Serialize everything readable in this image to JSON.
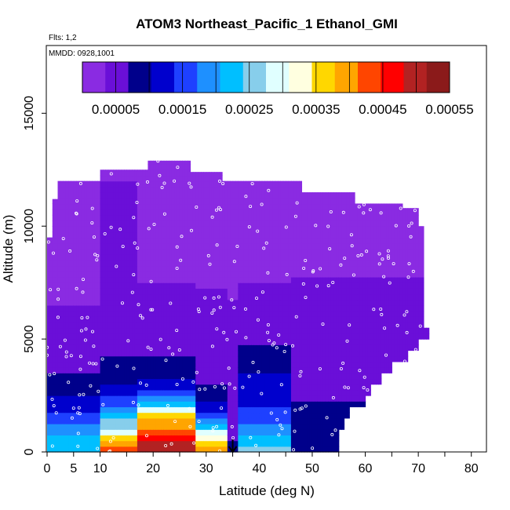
{
  "chart_data": {
    "type": "heatmap",
    "title": "ATOM3 Northeast_Pacific_1 Ethanol_GMI",
    "subtitle_flights": "Flts: 1,2",
    "subtitle_dates": "MMDD: 0928,1001",
    "xlabel": "Latitude (deg N)",
    "ylabel": "Altitude (m)",
    "xlim": [
      0,
      83
    ],
    "ylim": [
      0,
      18000
    ],
    "x_ticks": [
      0,
      5,
      10,
      20,
      30,
      40,
      50,
      60,
      70,
      80
    ],
    "x_ticks_unlabeled": [
      15,
      25,
      35,
      45,
      55,
      65,
      75
    ],
    "y_ticks": [
      0,
      5000,
      10000,
      15000
    ],
    "colorbar": {
      "min": 0.0,
      "max": 0.00055,
      "tick_values": [
        5e-05,
        0.00015,
        0.00025,
        0.00035,
        0.00045,
        0.00055
      ],
      "tick_labels": [
        "0.00005",
        "0.00015",
        "0.00025",
        "0.00035",
        "0.00045",
        "0.00055"
      ],
      "separators": [
        5e-05,
        0.0001,
        0.00015,
        0.0002,
        0.00025,
        0.0003,
        0.00035,
        0.0004,
        0.00045,
        0.0005
      ],
      "colors": [
        "#8a2be2",
        "#6a0fd8",
        "#00008b",
        "#0000cd",
        "#1e40ff",
        "#1e90ff",
        "#00bfff",
        "#87ceeb",
        "#e0ffff",
        "#ffffe0",
        "#ffd700",
        "#ffa500",
        "#ff4500",
        "#ff0000",
        "#b22222",
        "#8b1a1a"
      ]
    },
    "marker": {
      "latitude": 35,
      "altitude": 0,
      "symbol": "down-arrow"
    },
    "columns": [
      {
        "lat0": 0,
        "lat1": 1,
        "top": 9500
      },
      {
        "lat0": 1,
        "lat1": 2,
        "top": 11200
      },
      {
        "lat0": 2,
        "lat1": 6,
        "top": 12000
      },
      {
        "lat0": 6,
        "lat1": 10,
        "top": 12000
      },
      {
        "lat0": 10,
        "lat1": 14,
        "top": 12500
      },
      {
        "lat0": 14,
        "lat1": 19,
        "top": 12500
      },
      {
        "lat0": 19,
        "lat1": 23,
        "top": 12900
      },
      {
        "lat0": 23,
        "lat1": 27,
        "top": 12900
      },
      {
        "lat0": 27,
        "lat1": 33,
        "top": 12400
      },
      {
        "lat0": 33,
        "lat1": 38,
        "top": 12000
      },
      {
        "lat0": 38,
        "lat1": 43,
        "top": 12000
      },
      {
        "lat0": 43,
        "lat1": 48,
        "top": 12000
      },
      {
        "lat0": 48,
        "lat1": 53,
        "top": 11500
      },
      {
        "lat0": 53,
        "lat1": 58,
        "top": 11500
      },
      {
        "lat0": 58,
        "lat1": 63,
        "top": 11000
      },
      {
        "lat0": 63,
        "lat1": 67,
        "top": 11000
      },
      {
        "lat0": 67,
        "lat1": 70,
        "top": 10800
      },
      {
        "lat0": 70,
        "lat1": 71,
        "top": 10000
      },
      {
        "lat0": 71,
        "lat1": 72,
        "top": 5500
      }
    ],
    "lower_boundary": [
      {
        "lat": 0,
        "bottom": 0
      },
      {
        "lat": 46,
        "bottom": 0
      },
      {
        "lat": 55,
        "bottom": 0
      },
      {
        "lat": 55,
        "bottom": 1000
      },
      {
        "lat": 56,
        "bottom": 1000
      },
      {
        "lat": 56,
        "bottom": 1500
      },
      {
        "lat": 57,
        "bottom": 1500
      },
      {
        "lat": 57,
        "bottom": 2000
      },
      {
        "lat": 60,
        "bottom": 2000
      },
      {
        "lat": 60,
        "bottom": 2500
      },
      {
        "lat": 61,
        "bottom": 2500
      },
      {
        "lat": 61,
        "bottom": 3000
      },
      {
        "lat": 63,
        "bottom": 3000
      },
      {
        "lat": 63,
        "bottom": 3500
      },
      {
        "lat": 65,
        "bottom": 3500
      },
      {
        "lat": 65,
        "bottom": 4000
      },
      {
        "lat": 68,
        "bottom": 4000
      },
      {
        "lat": 68,
        "bottom": 4500
      },
      {
        "lat": 70,
        "bottom": 4500
      },
      {
        "lat": 70,
        "bottom": 5000
      },
      {
        "lat": 72,
        "bottom": 5000
      }
    ],
    "field": {
      "description_of_bands": "ethanol mixing ratio by latitude band and altitude",
      "bands": [
        {
          "lat0": 0,
          "lat1": 10,
          "profile": [
            [
              0,
              0.00022
            ],
            [
              500,
              0.00022
            ],
            [
              1000,
              0.0002
            ],
            [
              1500,
              0.00015
            ],
            [
              2000,
              0.00012
            ],
            [
              3000,
              8e-05
            ],
            [
              4000,
              6e-05
            ],
            [
              6000,
              4e-05
            ],
            [
              8000,
              2e-05
            ],
            [
              13000,
              1e-05
            ]
          ]
        },
        {
          "lat0": 10,
          "lat1": 17,
          "profile": [
            [
              0,
              0.00045
            ],
            [
              500,
              0.00038
            ],
            [
              1000,
              0.00028
            ],
            [
              1500,
              0.00024
            ],
            [
              2000,
              0.00018
            ],
            [
              2500,
              0.00013
            ],
            [
              3500,
              8e-05
            ],
            [
              5000,
              6e-05
            ],
            [
              7000,
              5e-05
            ],
            [
              9000,
              4e-05
            ],
            [
              10500,
              5e-05
            ],
            [
              11500,
              4e-05
            ],
            [
              13000,
              2e-05
            ]
          ]
        },
        {
          "lat0": 17,
          "lat1": 28,
          "profile": [
            [
              0,
              0.00052
            ],
            [
              500,
              0.00048
            ],
            [
              1000,
              0.00042
            ],
            [
              1500,
              0.00038
            ],
            [
              2000,
              0.00025
            ],
            [
              2500,
              0.00015
            ],
            [
              3500,
              8e-05
            ],
            [
              5000,
              6e-05
            ],
            [
              7000,
              4e-05
            ],
            [
              9000,
              2e-05
            ],
            [
              13000,
              1e-05
            ]
          ]
        },
        {
          "lat0": 28,
          "lat1": 34,
          "profile": [
            [
              0,
              0.00042
            ],
            [
              500,
              0.00035
            ],
            [
              1000,
              0.00025
            ],
            [
              1500,
              0.00018
            ],
            [
              2000,
              0.00012
            ],
            [
              3000,
              7e-05
            ],
            [
              5000,
              5e-05
            ],
            [
              8000,
              3e-05
            ],
            [
              13000,
              1e-05
            ]
          ]
        },
        {
          "lat0": 34,
          "lat1": 36,
          "profile": [
            [
              0,
              8e-05
            ],
            [
              1000,
              6e-05
            ],
            [
              3000,
              5e-05
            ],
            [
              6000,
              4e-05
            ],
            [
              9000,
              2e-05
            ],
            [
              13000,
              1e-05
            ]
          ]
        },
        {
          "lat0": 36,
          "lat1": 46,
          "profile": [
            [
              0,
              0.00028
            ],
            [
              500,
              0.00022
            ],
            [
              1000,
              0.00018
            ],
            [
              2000,
              0.00014
            ],
            [
              3000,
              0.00012
            ],
            [
              4000,
              9e-05
            ],
            [
              5000,
              6e-05
            ],
            [
              7000,
              4e-05
            ],
            [
              9000,
              2e-05
            ],
            [
              13000,
              1e-05
            ]
          ]
        },
        {
          "lat0": 46,
          "lat1": 72,
          "profile": [
            [
              0,
              9e-05
            ],
            [
              1000,
              8e-05
            ],
            [
              2000,
              7e-05
            ],
            [
              4000,
              6e-05
            ],
            [
              5500,
              5e-05
            ],
            [
              7000,
              4e-05
            ],
            [
              8500,
              3e-05
            ],
            [
              9500,
              2e-05
            ],
            [
              13000,
              1e-05
            ]
          ]
        }
      ]
    }
  }
}
